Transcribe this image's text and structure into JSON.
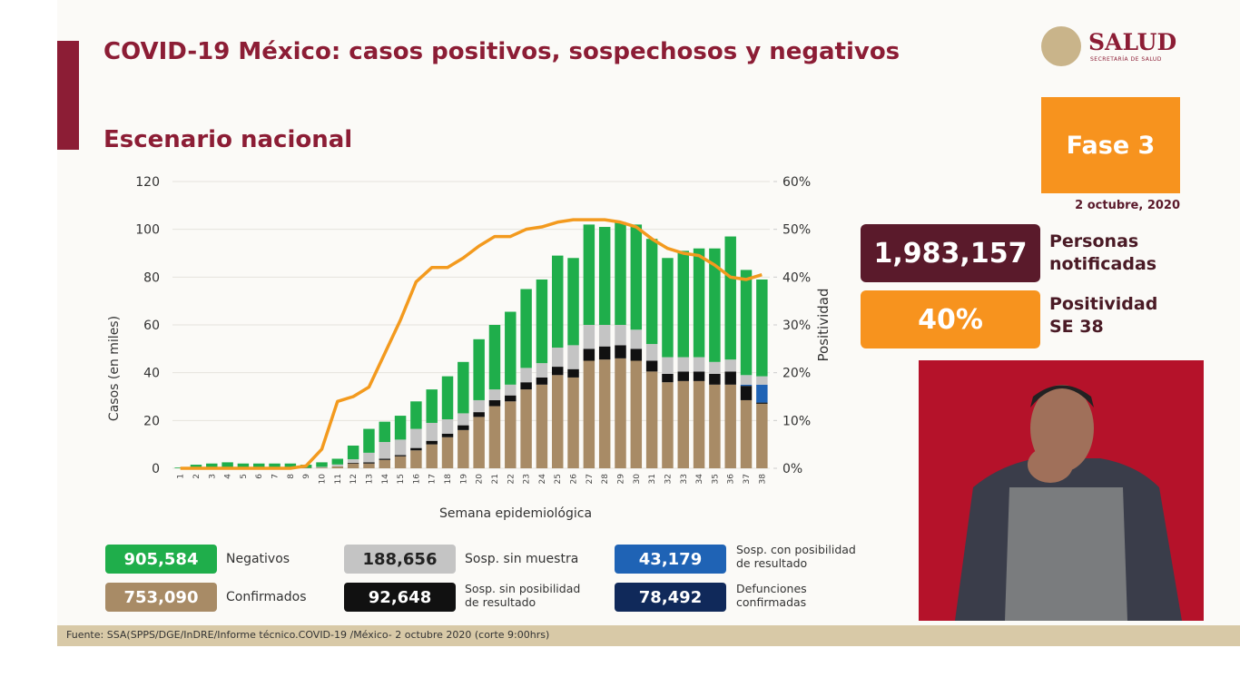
{
  "header": {
    "title": "COVID-19 México: casos positivos, sospechosos y negativos",
    "subtitle": "Escenario nacional",
    "logo": "SALUD",
    "logo_subtitle": "SECRETARÍA DE SALUD"
  },
  "panel": {
    "phase": "Fase 3",
    "date": "2 octubre, 2020",
    "stats": [
      {
        "value": "1,983,157",
        "label": "Personas notificadas",
        "color": "#5a1a2b"
      },
      {
        "value": "40%",
        "label": "Positividad SE 38",
        "color": "#f7931e"
      }
    ]
  },
  "chart_data": {
    "type": "stacked_bar",
    "xlabel": "Semana epidemiológica",
    "ylabel": "Casos (en miles)",
    "y2label": "Positividad",
    "categories": [
      "1",
      "2",
      "3",
      "4",
      "5",
      "6",
      "7",
      "8",
      "9",
      "10",
      "11",
      "12",
      "13",
      "14",
      "15",
      "16",
      "17",
      "18",
      "19",
      "20",
      "21",
      "22",
      "23",
      "24",
      "25",
      "26",
      "27",
      "28",
      "29",
      "30",
      "31",
      "32",
      "33",
      "34",
      "35",
      "36",
      "37",
      "38"
    ],
    "ylim": [
      0,
      120
    ],
    "yticks": [
      0,
      20,
      40,
      60,
      80,
      100,
      120
    ],
    "y2lim": [
      0,
      60
    ],
    "y2ticks": [
      {
        "value": 0,
        "label": "0%"
      },
      {
        "value": 10,
        "label": "10%"
      },
      {
        "value": 20,
        "label": "20%"
      },
      {
        "value": 30,
        "label": "30%"
      },
      {
        "value": 40,
        "label": "40%"
      },
      {
        "value": 50,
        "label": "50%"
      },
      {
        "value": 60,
        "label": "60%"
      }
    ],
    "grid": true,
    "series": [
      {
        "name": "Confirmados",
        "total": "753,090",
        "color": "#a88b66",
        "values": [
          0,
          0,
          0,
          0,
          0,
          0,
          0,
          0,
          0.2,
          0.3,
          0.8,
          2,
          2,
          3.5,
          5,
          7.5,
          10,
          13,
          16,
          21.5,
          26,
          28,
          33,
          35,
          39,
          38,
          45,
          45.5,
          46,
          45,
          40.5,
          36,
          36.5,
          36.5,
          35,
          35,
          28.5,
          27
        ]
      },
      {
        "name": "Sosp. sin posibilidad de resultado",
        "total": "92,648",
        "color": "#111111",
        "values": [
          0,
          0,
          0,
          0,
          0,
          0,
          0,
          0,
          0,
          0,
          0,
          0.3,
          0.5,
          0.5,
          0.5,
          1,
          1.5,
          1.5,
          2,
          2,
          2.5,
          2.5,
          3,
          3,
          3.5,
          3.5,
          5,
          5.5,
          5.5,
          5,
          4.5,
          3.5,
          4,
          4,
          4.5,
          5.5,
          6,
          0.5
        ]
      },
      {
        "name": "Sosp. con posibilidad de resultado",
        "total": "43,179",
        "color": "#1f63b5",
        "values": [
          0,
          0,
          0,
          0,
          0,
          0,
          0,
          0,
          0,
          0,
          0,
          0,
          0,
          0,
          0,
          0,
          0,
          0,
          0,
          0,
          0,
          0,
          0,
          0,
          0,
          0,
          0,
          0,
          0,
          0,
          0,
          0,
          0,
          0,
          0,
          0,
          0.5,
          7.5
        ]
      },
      {
        "name": "Sosp. sin muestra",
        "total": "188,656",
        "color": "#c4c4c4",
        "values": [
          0,
          0,
          0,
          0,
          0,
          0,
          0,
          0,
          0,
          0.3,
          0.8,
          1.5,
          4,
          7,
          6.5,
          8,
          7.5,
          6,
          5,
          5,
          4.5,
          4.5,
          6,
          6,
          8,
          10,
          10,
          9,
          8.5,
          8,
          7,
          7,
          6,
          6,
          5,
          5,
          4,
          3.5
        ]
      },
      {
        "name": "Negativos",
        "total": "905,584",
        "color": "#1fae4b",
        "values": [
          0.3,
          1.5,
          2,
          2.5,
          2,
          2,
          2,
          2,
          1.3,
          1.9,
          2.4,
          5.7,
          10,
          8.5,
          10,
          11.5,
          14,
          18,
          21.5,
          25.5,
          27,
          30.5,
          33,
          35,
          38.5,
          36.5,
          42,
          41,
          43,
          44,
          44,
          41.5,
          44.5,
          45.5,
          47.5,
          51.5,
          44,
          40.5
        ]
      }
    ],
    "line": {
      "axis": "y2",
      "color": "#f39a1e",
      "values": [
        0,
        0,
        0,
        0,
        0,
        0,
        0,
        0,
        0.5,
        4,
        14,
        15,
        17,
        24,
        31,
        39,
        42,
        42,
        44,
        46.5,
        48.5,
        48.5,
        50,
        50.5,
        51.5,
        52,
        52,
        52,
        51.5,
        50.5,
        48,
        46,
        45,
        44.5,
        42.5,
        40,
        39.5,
        40.5
      ]
    },
    "deaths": {
      "name": "Defunciones confirmadas",
      "total": "78,492",
      "color": "#10295a"
    }
  },
  "source": "Fuente: SSA(SPPS/DGE/InDRE/Informe técnico.COVID-19 /México- 2 octubre 2020 (corte 9:00hrs)"
}
